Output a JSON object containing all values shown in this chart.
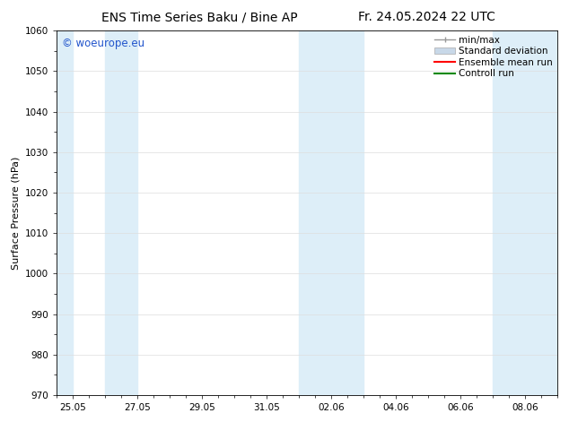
{
  "title_left": "ENS Time Series Baku / Bine AP",
  "title_right": "Fr. 24.05.2024 22 UTC",
  "ylabel": "Surface Pressure (hPa)",
  "ylim": [
    970,
    1060
  ],
  "yticks": [
    970,
    980,
    990,
    1000,
    1010,
    1020,
    1030,
    1040,
    1050,
    1060
  ],
  "xlim": [
    0,
    15.5
  ],
  "xtick_labels": [
    "25.05",
    "27.05",
    "29.05",
    "31.05",
    "02.06",
    "04.06",
    "06.06",
    "08.06"
  ],
  "xtick_positions": [
    0.5,
    2.5,
    4.5,
    6.5,
    8.5,
    10.5,
    12.5,
    14.5
  ],
  "shaded_bands": [
    {
      "x_start": 0.0,
      "x_end": 0.5,
      "color": "#ddeef8"
    },
    {
      "x_start": 1.5,
      "x_end": 2.5,
      "color": "#ddeef8"
    },
    {
      "x_start": 7.5,
      "x_end": 9.5,
      "color": "#ddeef8"
    },
    {
      "x_start": 13.5,
      "x_end": 15.5,
      "color": "#ddeef8"
    }
  ],
  "watermark_text": "© woeurope.eu",
  "watermark_color": "#2255cc",
  "legend_entries": [
    {
      "label": "min/max",
      "color": "#999999",
      "lw": 1.0,
      "style": "minmax"
    },
    {
      "label": "Standard deviation",
      "color": "#bbccdd",
      "lw": 8,
      "style": "rect"
    },
    {
      "label": "Ensemble mean run",
      "color": "#ff0000",
      "lw": 1.5,
      "style": "line"
    },
    {
      "label": "Controll run",
      "color": "#008800",
      "lw": 1.5,
      "style": "line"
    }
  ],
  "bg_color": "#ffffff",
  "plot_bg_color": "#ffffff",
  "grid_color": "#dddddd",
  "title_fontsize": 10,
  "axis_label_fontsize": 8,
  "tick_fontsize": 7.5,
  "legend_fontsize": 7.5
}
